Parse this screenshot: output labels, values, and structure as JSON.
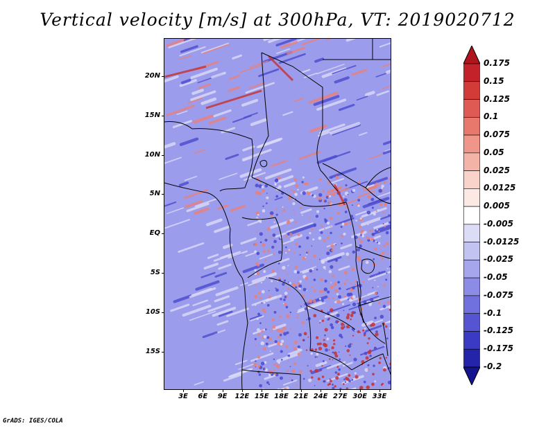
{
  "title": "Vertical velocity [m/s] at 300hPa, VT: 2019020712",
  "credit": "GrADS: IGES/COLA",
  "lat_labels": [
    "20N",
    "15N",
    "10N",
    "5N",
    "EQ",
    "5S",
    "10S",
    "15S"
  ],
  "lon_labels": [
    "3E",
    "6E",
    "9E",
    "12E",
    "15E",
    "18E",
    "21E",
    "24E",
    "27E",
    "30E",
    "33E"
  ],
  "colorbar": {
    "levels": [
      "0.175",
      "0.15",
      "0.125",
      "0.1",
      "0.075",
      "0.05",
      "0.025",
      "0.0125",
      "0.005",
      "-0.005",
      "-0.0125",
      "-0.025",
      "-0.05",
      "-0.075",
      "-0.1",
      "-0.125",
      "-0.175",
      "-0.2"
    ],
    "colors": [
      "#b0141e",
      "#c4222a",
      "#d33b38",
      "#df5a52",
      "#e8786c",
      "#ef9589",
      "#f4b3a7",
      "#f9d2ca",
      "#fde9e4",
      "#ffffff",
      "#dcdcf7",
      "#c3c3f2",
      "#a6a6ec",
      "#8c8ce6",
      "#7070df",
      "#5555d4",
      "#3a3ac4",
      "#2424aa",
      "#141490"
    ]
  },
  "field_colors": {
    "background": "#9c9cec",
    "light": "#dcdcf8",
    "positive": "#ea8078",
    "strong_positive": "#c83030",
    "strong_negative": "#4a4ad0"
  }
}
